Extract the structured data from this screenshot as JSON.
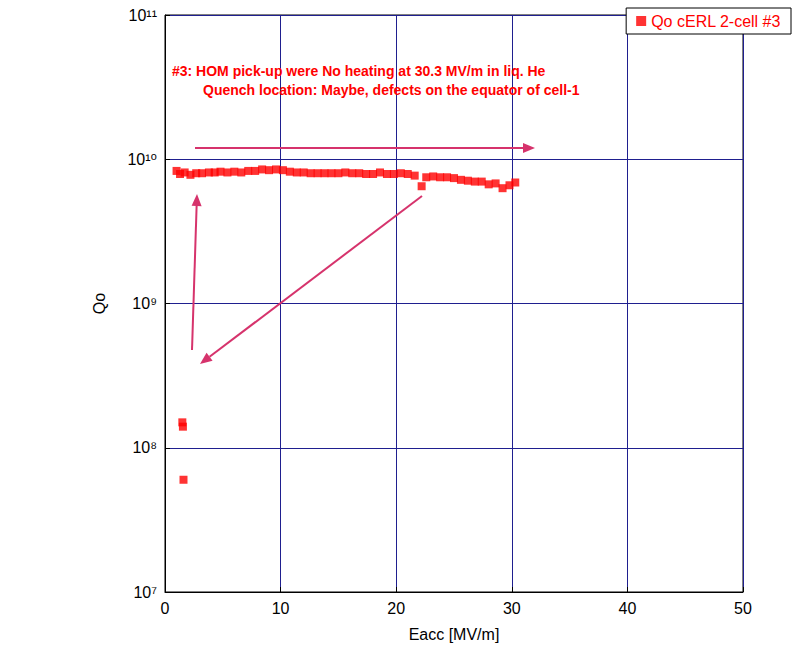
{
  "chart_data": {
    "type": "scatter",
    "xlabel": "Eacc [MV/m]",
    "ylabel": "Qo",
    "annotations": [
      "#3: HOM pick-up were No heating at 30.3 MV/m in liq. He",
      "Quench location: Maybe, defects on the equator of cell-1"
    ],
    "log": "y",
    "grid": true,
    "legend": "upper right",
    "xlim": [
      0,
      50
    ],
    "xticks": [
      0,
      10,
      20,
      30,
      40,
      50
    ],
    "ylim": [
      10000000,
      100000000000
    ],
    "yticks": [
      {
        "value": 10000000,
        "label": "10⁷"
      },
      {
        "value": 100000000,
        "label": "10⁸"
      },
      {
        "value": 1000000000,
        "label": "10⁹"
      },
      {
        "value": 10000000000,
        "label": "10¹⁰"
      },
      {
        "value": 100000000000,
        "label": "10¹¹"
      }
    ],
    "series": [
      {
        "name": "Qo cERL 2-cell #3",
        "color": "#ff0000",
        "marker": "square",
        "x": [
          1.5,
          1.55,
          1.6,
          1.0,
          1.3,
          1.7,
          2.2,
          2.7,
          3.2,
          3.8,
          4.3,
          4.8,
          5.4,
          6.0,
          6.6,
          7.2,
          7.8,
          8.4,
          9.0,
          9.6,
          10.2,
          10.8,
          11.4,
          12.0,
          12.6,
          13.2,
          13.8,
          14.4,
          15.0,
          15.6,
          16.2,
          16.8,
          17.4,
          18.0,
          18.6,
          19.2,
          19.8,
          20.4,
          21.0,
          21.6,
          22.2,
          22.6,
          23.2,
          23.8,
          24.4,
          25.0,
          25.6,
          26.2,
          26.8,
          27.4,
          28.0,
          28.6,
          29.2,
          29.8,
          30.3
        ],
        "values": [
          150000000,
          140000000,
          60000000,
          8300000000,
          7900000000,
          8100000000,
          7800000000,
          8000000000,
          8000000000,
          8100000000,
          8100000000,
          8200000000,
          8100000000,
          8200000000,
          8100000000,
          8300000000,
          8300000000,
          8500000000,
          8400000000,
          8500000000,
          8400000000,
          8200000000,
          8100000000,
          8100000000,
          8000000000,
          8000000000,
          8000000000,
          8000000000,
          8000000000,
          8100000000,
          8000000000,
          8000000000,
          7900000000,
          7900000000,
          8100000000,
          7900000000,
          7900000000,
          8000000000,
          7900000000,
          7700000000,
          6500000000,
          7500000000,
          7600000000,
          7500000000,
          7500000000,
          7400000000,
          7200000000,
          7100000000,
          7000000000,
          7000000000,
          6700000000,
          6800000000,
          6300000000,
          6600000000,
          6900000000
        ]
      }
    ]
  }
}
